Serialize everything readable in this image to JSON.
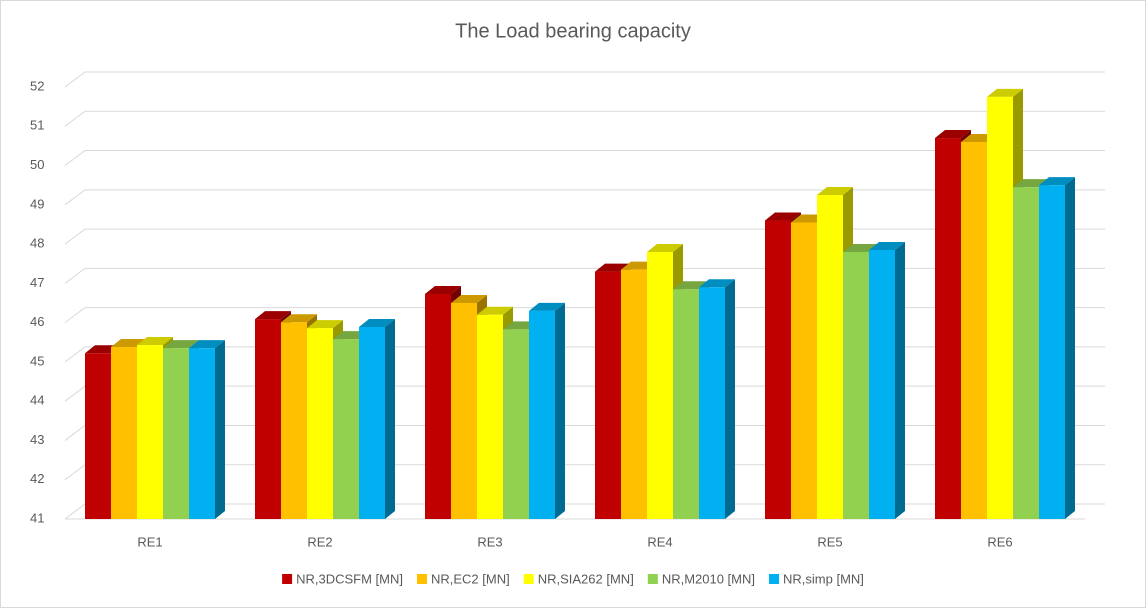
{
  "chart_data": {
    "type": "bar3d",
    "title": "The Load bearing capacity",
    "categories": [
      "RE1",
      "RE2",
      "RE3",
      "RE4",
      "RE5",
      "RE6"
    ],
    "series": [
      {
        "name": "NR,3DCSFM [MN]",
        "color": "#c00000",
        "values": [
          45.22,
          46.09,
          46.73,
          47.3,
          48.6,
          50.7
        ]
      },
      {
        "name": "NR,EC2 [MN]",
        "color": "#ffc000",
        "values": [
          45.38,
          46.01,
          46.5,
          47.35,
          48.55,
          50.6
        ]
      },
      {
        "name": "NR,SIA262 [MN]",
        "color": "#ffff00",
        "values": [
          45.43,
          45.86,
          46.2,
          47.8,
          49.25,
          51.75
        ]
      },
      {
        "name": "NR,M2010 [MN]",
        "color": "#92d050",
        "values": [
          45.35,
          45.58,
          45.83,
          46.85,
          47.8,
          49.45
        ]
      },
      {
        "name": "NR,simp [MN]",
        "color": "#00b0f0",
        "values": [
          45.35,
          45.89,
          46.3,
          46.9,
          47.85,
          49.5
        ]
      }
    ],
    "ylim": [
      41,
      52
    ],
    "yticks": [
      41,
      42,
      43,
      44,
      45,
      46,
      47,
      48,
      49,
      50,
      51,
      52
    ],
    "grid": true
  }
}
